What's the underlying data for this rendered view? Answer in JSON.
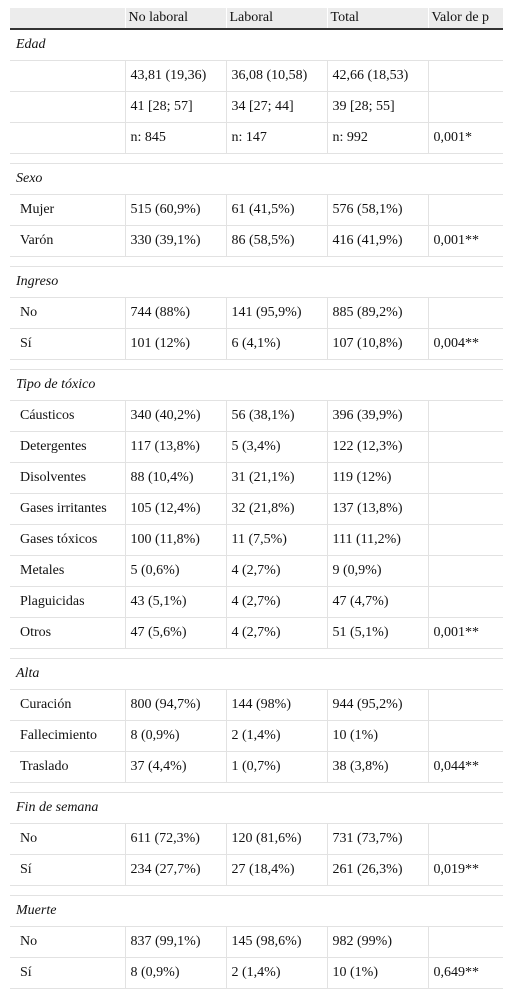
{
  "table": {
    "header": [
      null,
      "No laboral",
      "Laboral",
      "Total",
      "Valor de p"
    ],
    "sections": [
      {
        "title": "Edad",
        "rows": [
          [
            null,
            "43,81 (19,36)",
            "36,08 (10,58)",
            "42,66 (18,53)",
            null
          ],
          [
            null,
            "41 [28; 57]",
            "34 [27; 44]",
            "39 [28; 55]",
            null
          ],
          [
            null,
            "n: 845",
            "n: 147",
            "n: 992",
            "0,001*"
          ]
        ]
      },
      {
        "title": "Sexo",
        "rows": [
          [
            "Mujer",
            "515 (60,9%)",
            "61 (41,5%)",
            "576 (58,1%)",
            null
          ],
          [
            "Varón",
            "330 (39,1%)",
            "86 (58,5%)",
            "416 (41,9%)",
            "0,001**"
          ]
        ]
      },
      {
        "title": "Ingreso",
        "rows": [
          [
            "No",
            "744 (88%)",
            "141 (95,9%)",
            "885 (89,2%)",
            null
          ],
          [
            "Sí",
            "101 (12%)",
            "6 (4,1%)",
            "107 (10,8%)",
            "0,004**"
          ]
        ]
      },
      {
        "title": "Tipo de tóxico",
        "rows": [
          [
            "Cáusticos",
            "340 (40,2%)",
            "56 (38,1%)",
            "396 (39,9%)",
            null
          ],
          [
            "Detergentes",
            "117 (13,8%)",
            "5 (3,4%)",
            "122 (12,3%)",
            null
          ],
          [
            "Disolventes",
            "88 (10,4%)",
            "31 (21,1%)",
            "119 (12%)",
            null
          ],
          [
            "Gases irritantes",
            "105 (12,4%)",
            "32 (21,8%)",
            "137 (13,8%)",
            null
          ],
          [
            "Gases tóxicos",
            "100 (11,8%)",
            "11 (7,5%)",
            "111 (11,2%)",
            null
          ],
          [
            "Metales",
            "5 (0,6%)",
            "4 (2,7%)",
            "9 (0,9%)",
            null
          ],
          [
            "Plaguicidas",
            "43 (5,1%)",
            "4 (2,7%)",
            "47 (4,7%)",
            null
          ],
          [
            "Otros",
            "47 (5,6%)",
            "4 (2,7%)",
            "51 (5,1%)",
            "0,001**"
          ]
        ]
      },
      {
        "title": "Alta",
        "rows": [
          [
            "Curación",
            "800 (94,7%)",
            "144 (98%)",
            "944 (95,2%)",
            null
          ],
          [
            "Fallecimiento",
            "8 (0,9%)",
            "2 (1,4%)",
            "10 (1%)",
            null
          ],
          [
            "Traslado",
            "37 (4,4%)",
            "1 (0,7%)",
            "38 (3,8%)",
            "0,044**"
          ]
        ]
      },
      {
        "title": "Fin de semana",
        "rows": [
          [
            "No",
            "611 (72,3%)",
            "120 (81,6%)",
            "731 (73,7%)",
            null
          ],
          [
            "Sí",
            "234 (27,7%)",
            "27 (18,4%)",
            "261 (26,3%)",
            "0,019**"
          ]
        ]
      },
      {
        "title": "Muerte",
        "rows": [
          [
            "No",
            "837 (99,1%)",
            "145 (98,6%)",
            "982 (99%)",
            null
          ],
          [
            "Sí",
            "8 (0,9%)",
            "2 (1,4%)",
            "10 (1%)",
            "0,649**"
          ]
        ]
      }
    ]
  }
}
